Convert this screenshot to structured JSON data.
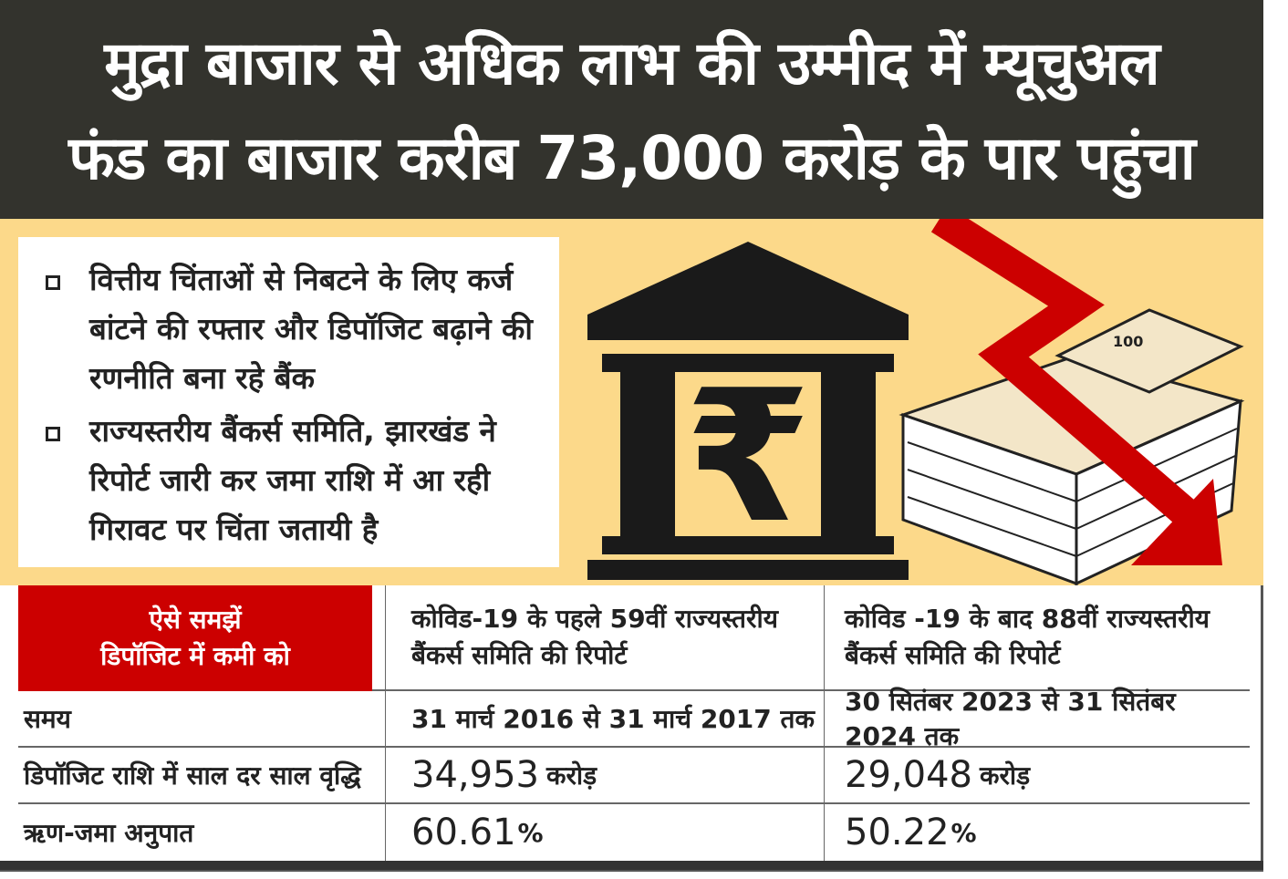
{
  "headline": {
    "line1": "मुद्रा बाजार से अधिक लाभ की उम्मीद में म्यूचुअल",
    "line2": "फंड का बाजार करीब 73,000 करोड़ के पार पहुंचा"
  },
  "bullets": [
    "वित्तीय चिंताओं से निबटने के लिए कर्ज बांटने की रफ्तार और डिपॉजिट बढ़ाने की रणनीति बना रहे बैंक",
    "राज्यस्तरीय बैंकर्स समिति, झारखंड ने रिपोर्ट जारी कर जमा राशि में आ रही गिरावट पर चिंता जतायी है"
  ],
  "illustration": {
    "bank_symbol": "₹",
    "note_value": "100",
    "colors": {
      "arrow": "#cc0000",
      "bank": "#1a1a1a",
      "background": "#fcd98a"
    }
  },
  "table": {
    "title_line1": "ऐसे समझें",
    "title_line2": "डिपॉजिट में कमी को",
    "col2_header": "कोविड-19 के पहले 59वीं राज्यस्तरीय बैंकर्स समिति की रिपोर्ट",
    "col3_header": "कोविड -19 के बाद 88वीं राज्यस्तरीय बैंकर्स समिति की रिपोर्ट",
    "rows": [
      {
        "label": "समय",
        "v1": "31 मार्च 2016 से 31 मार्च 2017 तक",
        "v2": "30 सितंबर 2023 से 31 सितंबर 2024 तक"
      },
      {
        "label": "डिपॉजिट राशि में साल दर साल वृद्धि",
        "v1": "34,953",
        "u1": "करोड़",
        "v2": "29,048",
        "u2": "करोड़"
      },
      {
        "label": "ऋण-जमा अनुपात",
        "v1": "60.61",
        "u1": "%",
        "v2": "50.22",
        "u2": "%"
      }
    ]
  }
}
